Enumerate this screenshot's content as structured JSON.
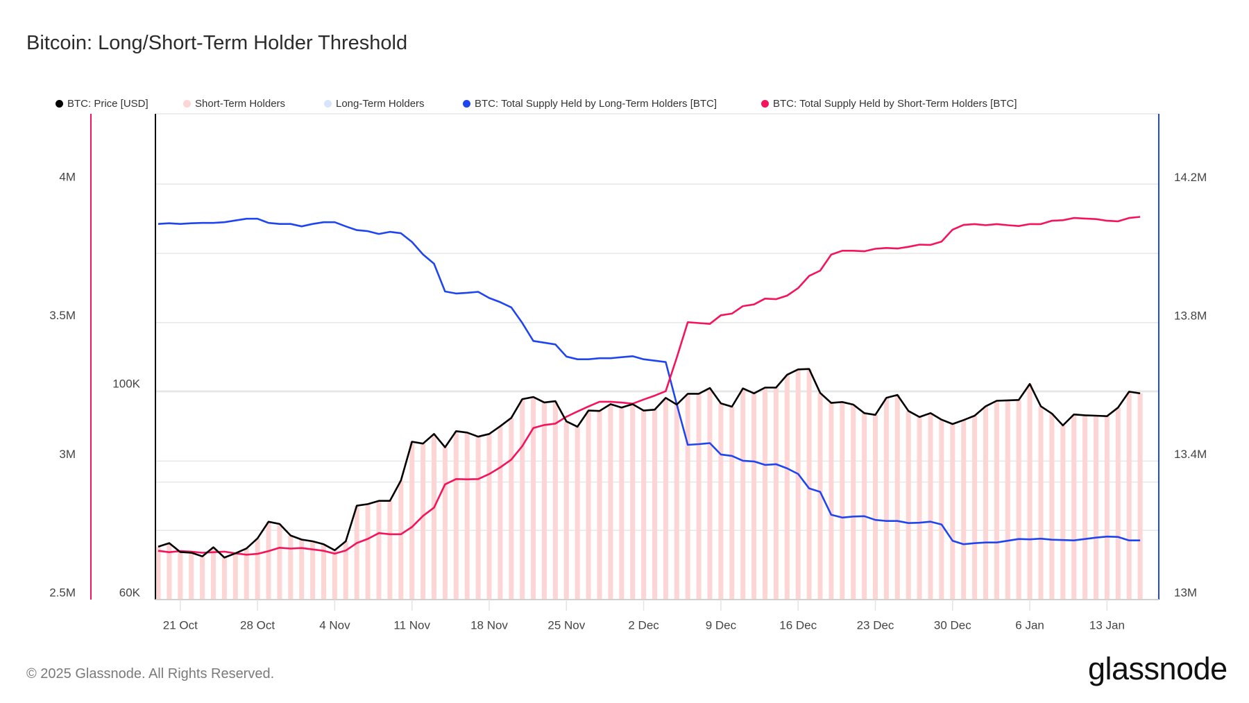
{
  "title": "Bitcoin: Long/Short-Term Holder Threshold",
  "copyright": "© 2025 Glassnode. All Rights Reserved.",
  "logo_text": "glassnode",
  "colors": {
    "price": "#000000",
    "sth_bars": "#fdd5d5",
    "lth_bars": "#d6e5fb",
    "lth_supply": "#1f45f0",
    "sth_supply": "#f5135b",
    "grid": "#e6e6e6"
  },
  "legend": [
    {
      "label": "BTC: Price [USD]",
      "color": "#000000"
    },
    {
      "label": "Short-Term Holders",
      "color": "#fdd5d5"
    },
    {
      "label": "Long-Term Holders",
      "color": "#d6e5fb"
    },
    {
      "label": "BTC: Total Supply Held by Long-Term Holders [BTC]",
      "color": "#1f45f0"
    },
    {
      "label": "BTC: Total Supply Held by Short-Term Holders [BTC]",
      "color": "#f5135b"
    }
  ],
  "chart_data": {
    "type": "line",
    "title": "Bitcoin: Long/Short-Term Holder Threshold",
    "x_start_date": "2024-10-19",
    "x_step": "1 day",
    "x_tick_labels": [
      "21 Oct",
      "28 Oct",
      "4 Nov",
      "11 Nov",
      "18 Nov",
      "25 Nov",
      "2 Dec",
      "9 Dec",
      "16 Dec",
      "23 Dec",
      "30 Dec",
      "6 Jan",
      "13 Jan"
    ],
    "x_tick_index": [
      2,
      9,
      16,
      23,
      30,
      37,
      44,
      51,
      58,
      65,
      72,
      79,
      86
    ],
    "axes": {
      "sth_supply_axis": {
        "side": "left-outer",
        "scale": "linear",
        "range": [
          2500000,
          4253000
        ],
        "ticks": [
          2500000,
          3000000,
          3500000,
          4000000
        ],
        "tick_labels": [
          "2.5M",
          "3M",
          "3.5M",
          "4M"
        ]
      },
      "price_axis": {
        "side": "left-inner",
        "scale": "log",
        "range": [
          60000,
          197000
        ],
        "ticks": [
          60000,
          100000
        ],
        "tick_labels": [
          "60K",
          "100K"
        ],
        "extra_grid": [
          80000
        ]
      },
      "lth_supply_axis": {
        "side": "right",
        "scale": "linear",
        "range": [
          13000000,
          14403000
        ],
        "ticks": [
          13000000,
          13400000,
          13800000,
          14200000
        ],
        "tick_labels": [
          "13M",
          "13.4M",
          "13.8M",
          "14.2M"
        ],
        "grid": [
          13000000,
          13200000,
          13400000,
          13600000,
          13800000,
          14000000,
          14200000
        ]
      }
    },
    "grid": true,
    "legend_position": "top",
    "bars_regime": "Short-Term Holders",
    "series": [
      {
        "name": "BTC: Price [USD]",
        "axis": "price_axis",
        "unit": "K USD",
        "values": [
          68.3,
          68.9,
          67.4,
          67.3,
          66.7,
          68.2,
          66.5,
          67.2,
          68.0,
          69.7,
          72.6,
          72.2,
          70.2,
          69.5,
          69.2,
          68.7,
          67.7,
          69.2,
          75.5,
          75.8,
          76.4,
          76.4,
          80.3,
          88.3,
          87.9,
          90.0,
          87.1,
          90.6,
          90.3,
          89.4,
          90.0,
          91.7,
          93.6,
          98.0,
          98.5,
          97.2,
          97.5,
          92.8,
          91.6,
          95.3,
          95.2,
          96.8,
          96.0,
          96.8,
          95.3,
          95.5,
          98.3,
          96.7,
          99.3,
          99.3,
          100.7,
          97.0,
          96.2,
          100.6,
          99.4,
          100.8,
          100.8,
          104.0,
          105.4,
          105.5,
          99.5,
          97.1,
          97.3,
          96.7,
          94.7,
          94.3,
          98.3,
          99.0,
          95.2,
          93.8,
          94.7,
          93.2,
          92.2,
          93.1,
          94.1,
          96.3,
          97.6,
          97.7,
          97.8,
          101.7,
          96.3,
          94.6,
          91.9,
          94.4,
          94.2,
          94.1,
          94.0,
          96.0,
          99.8,
          99.4
        ]
      },
      {
        "name": "BTC: Total Supply Held by Long-Term Holders [BTC]",
        "axis": "lth_supply_axis",
        "unit": "M BTC",
        "values": [
          14.085,
          14.087,
          14.085,
          14.087,
          14.088,
          14.088,
          14.09,
          14.095,
          14.1,
          14.1,
          14.088,
          14.085,
          14.085,
          14.078,
          14.085,
          14.09,
          14.09,
          14.078,
          14.067,
          14.064,
          14.056,
          14.062,
          14.058,
          14.033,
          13.997,
          13.97,
          13.89,
          13.884,
          13.886,
          13.889,
          13.871,
          13.859,
          13.844,
          13.799,
          13.747,
          13.742,
          13.737,
          13.702,
          13.694,
          13.694,
          13.697,
          13.697,
          13.7,
          13.703,
          13.694,
          13.69,
          13.686,
          13.564,
          13.447,
          13.449,
          13.452,
          13.419,
          13.415,
          13.401,
          13.399,
          13.389,
          13.391,
          13.379,
          13.363,
          13.321,
          13.311,
          13.245,
          13.237,
          13.24,
          13.241,
          13.23,
          13.227,
          13.227,
          13.221,
          13.222,
          13.225,
          13.217,
          13.17,
          13.16,
          13.163,
          13.165,
          13.165,
          13.17,
          13.175,
          13.174,
          13.176,
          13.173,
          13.172,
          13.171,
          13.175,
          13.179,
          13.182,
          13.181,
          13.171,
          13.171
        ]
      },
      {
        "name": "BTC: Total Supply Held by Short-Term Holders [BTC]",
        "axis": "sth_supply_axis",
        "unit": "M BTC",
        "values": [
          2.676,
          2.671,
          2.675,
          2.673,
          2.669,
          2.671,
          2.673,
          2.667,
          2.662,
          2.665,
          2.675,
          2.687,
          2.684,
          2.686,
          2.681,
          2.676,
          2.666,
          2.677,
          2.704,
          2.719,
          2.74,
          2.736,
          2.736,
          2.762,
          2.802,
          2.832,
          2.916,
          2.935,
          2.934,
          2.935,
          2.953,
          2.977,
          3.005,
          3.054,
          3.119,
          3.13,
          3.135,
          3.16,
          3.179,
          3.197,
          3.214,
          3.214,
          3.211,
          3.207,
          3.222,
          3.236,
          3.252,
          3.373,
          3.501,
          3.498,
          3.495,
          3.526,
          3.532,
          3.559,
          3.565,
          3.586,
          3.584,
          3.597,
          3.624,
          3.668,
          3.687,
          3.745,
          3.759,
          3.759,
          3.757,
          3.766,
          3.769,
          3.767,
          3.773,
          3.781,
          3.78,
          3.792,
          3.835,
          3.852,
          3.855,
          3.851,
          3.855,
          3.851,
          3.848,
          3.855,
          3.855,
          3.867,
          3.869,
          3.877,
          3.875,
          3.873,
          3.867,
          3.865,
          3.877,
          3.881
        ]
      }
    ]
  }
}
